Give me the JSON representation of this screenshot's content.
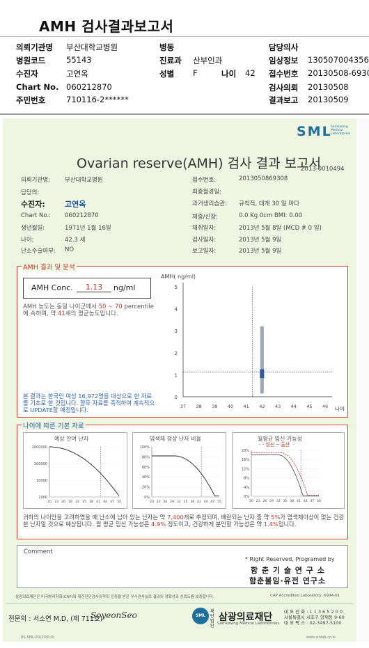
{
  "header": {
    "title": "AMH 검사결과보고서",
    "fields": [
      {
        "label": "의뢰기관명",
        "value": "부산대학교병원"
      },
      {
        "label": "병원코드",
        "value": "55143"
      },
      {
        "label": "수진자",
        "value": "고연옥"
      },
      {
        "label": "Chart No.",
        "value": "060212870"
      },
      {
        "label": "주민번호",
        "value": "710116-2******"
      },
      {
        "label": "병동",
        "value": ""
      },
      {
        "label": "진료과",
        "value": "산부인과"
      },
      {
        "label": "성별",
        "value": "F"
      },
      {
        "label": "나이",
        "value": "42"
      },
      {
        "label": "담당의사",
        "value": ""
      },
      {
        "label": "임상정보",
        "value": "130507004356"
      },
      {
        "label": "접수번호",
        "value": "20130508-6930"
      },
      {
        "label": "검사의뢰",
        "value": "20130508"
      },
      {
        "label": "결과보고",
        "value": "20130509"
      }
    ]
  },
  "report": {
    "logo": "SML",
    "logo_sub": "Samkwang Medical Laboratories",
    "title": "Ovarian reserve(AMH) 검사 결과 보고서",
    "number": "2013-0010494",
    "left": [
      {
        "label": "의뢰기관명:",
        "value": "부산대학교병원"
      },
      {
        "label": "담당의:",
        "value": ""
      },
      {
        "label": "수진자:",
        "value": "고연옥"
      },
      {
        "label": "Chart No.:",
        "value": "060212870"
      },
      {
        "label": "생년월일:",
        "value": "1971년 1월 16일"
      },
      {
        "label": "나이:",
        "value": "42.3 세"
      },
      {
        "label": "난소수술여부:",
        "value": "NO"
      }
    ],
    "right": [
      {
        "label": "접수번호:",
        "value": "2013050869308"
      },
      {
        "label": "최종월경일:",
        "value": ""
      },
      {
        "label": "과거생리습관:",
        "value": "규칙적, 대개  30 일 마다"
      },
      {
        "label": "체중/신장:",
        "value": "0.0 Kg     0cm    BMI:  0.00"
      },
      {
        "label": "채취일자:",
        "value": "2013년 5월 8일   (MCD # 0 일)"
      },
      {
        "label": "검사일자:",
        "value": "2013년 5월 9일"
      },
      {
        "label": "보고일자:",
        "value": "2013년 5월 9일"
      }
    ]
  },
  "amh": {
    "section_title": "AMH 결과 및 분석",
    "conc_label": "AMH Conc.",
    "conc_value": "1.13",
    "conc_unit": "ng/ml",
    "desc_pre": "AMH 농도는 동일 나이군에서",
    "desc_range": "50 ~ 70",
    "desc_mid1": "percentile에 속하며, 약",
    "desc_age": "41",
    "desc_post": "세의 평균농도입니다.",
    "note": "본 결과는 한국인 여성 16,972명을 대상으로 한 자료를 기초로 한 것입니다. 향후 자료를 축적하여 계속적으로 UPDATE할 예정입니다."
  },
  "chart_data": [
    {
      "type": "bar",
      "title": "",
      "ylabel": "AMH( ng/ml)",
      "xlabel": "나이",
      "x": [
        37,
        38,
        39,
        40,
        41,
        42,
        43,
        44,
        45,
        46
      ],
      "ylim": [
        0,
        5
      ],
      "yticks": [
        0,
        1,
        2,
        3,
        4,
        5
      ],
      "patient_age": 42,
      "patient_value": 1.13,
      "range_low": 0.15,
      "range_high": 3.2,
      "iqr_low": 0.85,
      "iqr_high": 1.25
    },
    {
      "type": "line",
      "title": "예상 잔여 난자",
      "x": [
        20,
        50
      ],
      "xticks": [
        "20",
        "23",
        "26",
        "29",
        "32",
        "35",
        "38",
        "41",
        "44",
        "47",
        "50"
      ],
      "yticks": [
        "1000",
        "10000",
        "100000",
        "1000000"
      ],
      "ylim": [
        1000,
        1000000
      ],
      "scale": "log",
      "marker_age": 42
    },
    {
      "type": "line",
      "title": "염색체 정상 난자 비율",
      "xticks": [
        "20",
        "23",
        "26",
        "29",
        "32",
        "35",
        "38",
        "41",
        "44",
        "47",
        "50"
      ],
      "yticks": [
        "0%",
        "20%",
        "40%",
        "60%",
        "80%",
        "100%"
      ],
      "ylim": [
        0,
        100
      ],
      "marker_age": 42
    },
    {
      "type": "line",
      "title": "월평균 임신 가능성",
      "legend": [
        "임신",
        "출산"
      ],
      "xticks": [
        "20",
        "23",
        "26",
        "29",
        "32",
        "35",
        "38",
        "41",
        "44",
        "47",
        "50"
      ],
      "yticks": [
        "0%",
        "4%",
        "8%",
        "12%",
        "16%",
        "20%"
      ],
      "ylim": [
        0,
        20
      ],
      "marker_age": 42
    }
  ],
  "age": {
    "section_title": "나이에 따른 기본 자료",
    "text_a": "귀하의 나이만을 고려하였을 때 난소에 남아 있는 난자는 약",
    "eggs": "7,400",
    "text_b": "개로 추정되며, 배란되는 난자 중 약",
    "normal_pct": "5%",
    "text_c": "가 염색체이상이 없는 건강한 난자일 것으로 예상됩니다. 월 평균 임신 가능성은",
    "preg_pct": "4.9%",
    "text_d": "정도이고, 건강하게 분만할 가능성은 약",
    "birth_pct": "1.4%",
    "text_e": "입니다."
  },
  "comment": {
    "label": "Comment",
    "rights": "* Right Reserved, Programed by",
    "inst1": "함 춘 기 술 연 구 소",
    "inst2": "함춘불임·유전 연구소"
  },
  "footer": {
    "cert": "삼광의료재단은 미국병리학회(CAP)와 대한진단검사의학회 인증을 받은 우수검사실로 결과의 정확성과 신뢰도를 보증합니다.",
    "cap": "CAP  Accredited  Laboratory,  6994-01",
    "specialist": "전문의 : 서소연 M.D, (제 711호)",
    "signature": "SoyeonSeo",
    "foundation_tag": "재단법인",
    "foundation": "삼광의료재단",
    "foundation_sub": "Samkwang Medical Laboratories",
    "addr1": "대 표 전 화 : 1 1 3 6 5 2 0 0",
    "addr2": "서울특별시 서초구 양재동 9-60",
    "addr3": "대 표 팩 스 : 02-3497-5100",
    "code": "RS-SML-00L10(R:0)",
    "site": "www.smlab.co.kr"
  }
}
